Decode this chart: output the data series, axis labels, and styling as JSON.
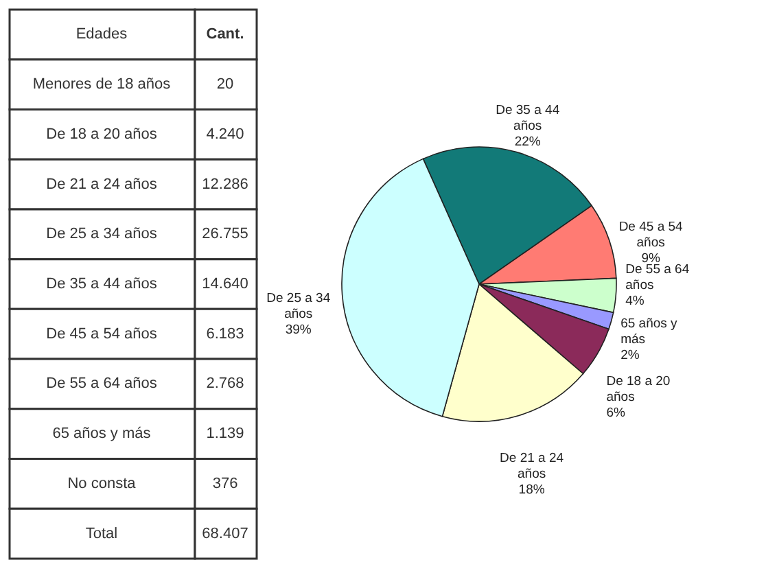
{
  "chart_data": [
    {
      "type": "other",
      "xlabel": "Edades",
      "ylabel": "Cant.",
      "categories": [
        "Menores de 18 años",
        "De 18 a 20 años",
        "De 21 a 24 años",
        "De 25 a 34 años",
        "De 35 a 44 años",
        "De 45 a 54 años",
        "De 55 a 64 años",
        "65 años y más",
        "No consta",
        "Total"
      ],
      "value_labels": [
        "20",
        "4.240",
        "12.286",
        "26.755",
        "14.640",
        "6.183",
        "2.768",
        "1.139",
        "376",
        "68.407"
      ]
    },
    {
      "type": "pie",
      "categories": [
        "De 35 a 44 años",
        "De 45 a 54 años",
        "De 55 a 64 años",
        "65 años y más",
        "De 18 a 20 años",
        "De 21 a 24 años",
        "De 25 a 34 años"
      ],
      "values": [
        22,
        9,
        4,
        2,
        6,
        18,
        39
      ],
      "value_labels": [
        "22%",
        "9%",
        "4%",
        "2%",
        "6%",
        "18%",
        "39%"
      ],
      "colors": [
        "#127a78",
        "#ff7b73",
        "#ccffcc",
        "#9999ff",
        "#8b2a5a",
        "#ffffcc",
        "#ccffff"
      ]
    }
  ]
}
